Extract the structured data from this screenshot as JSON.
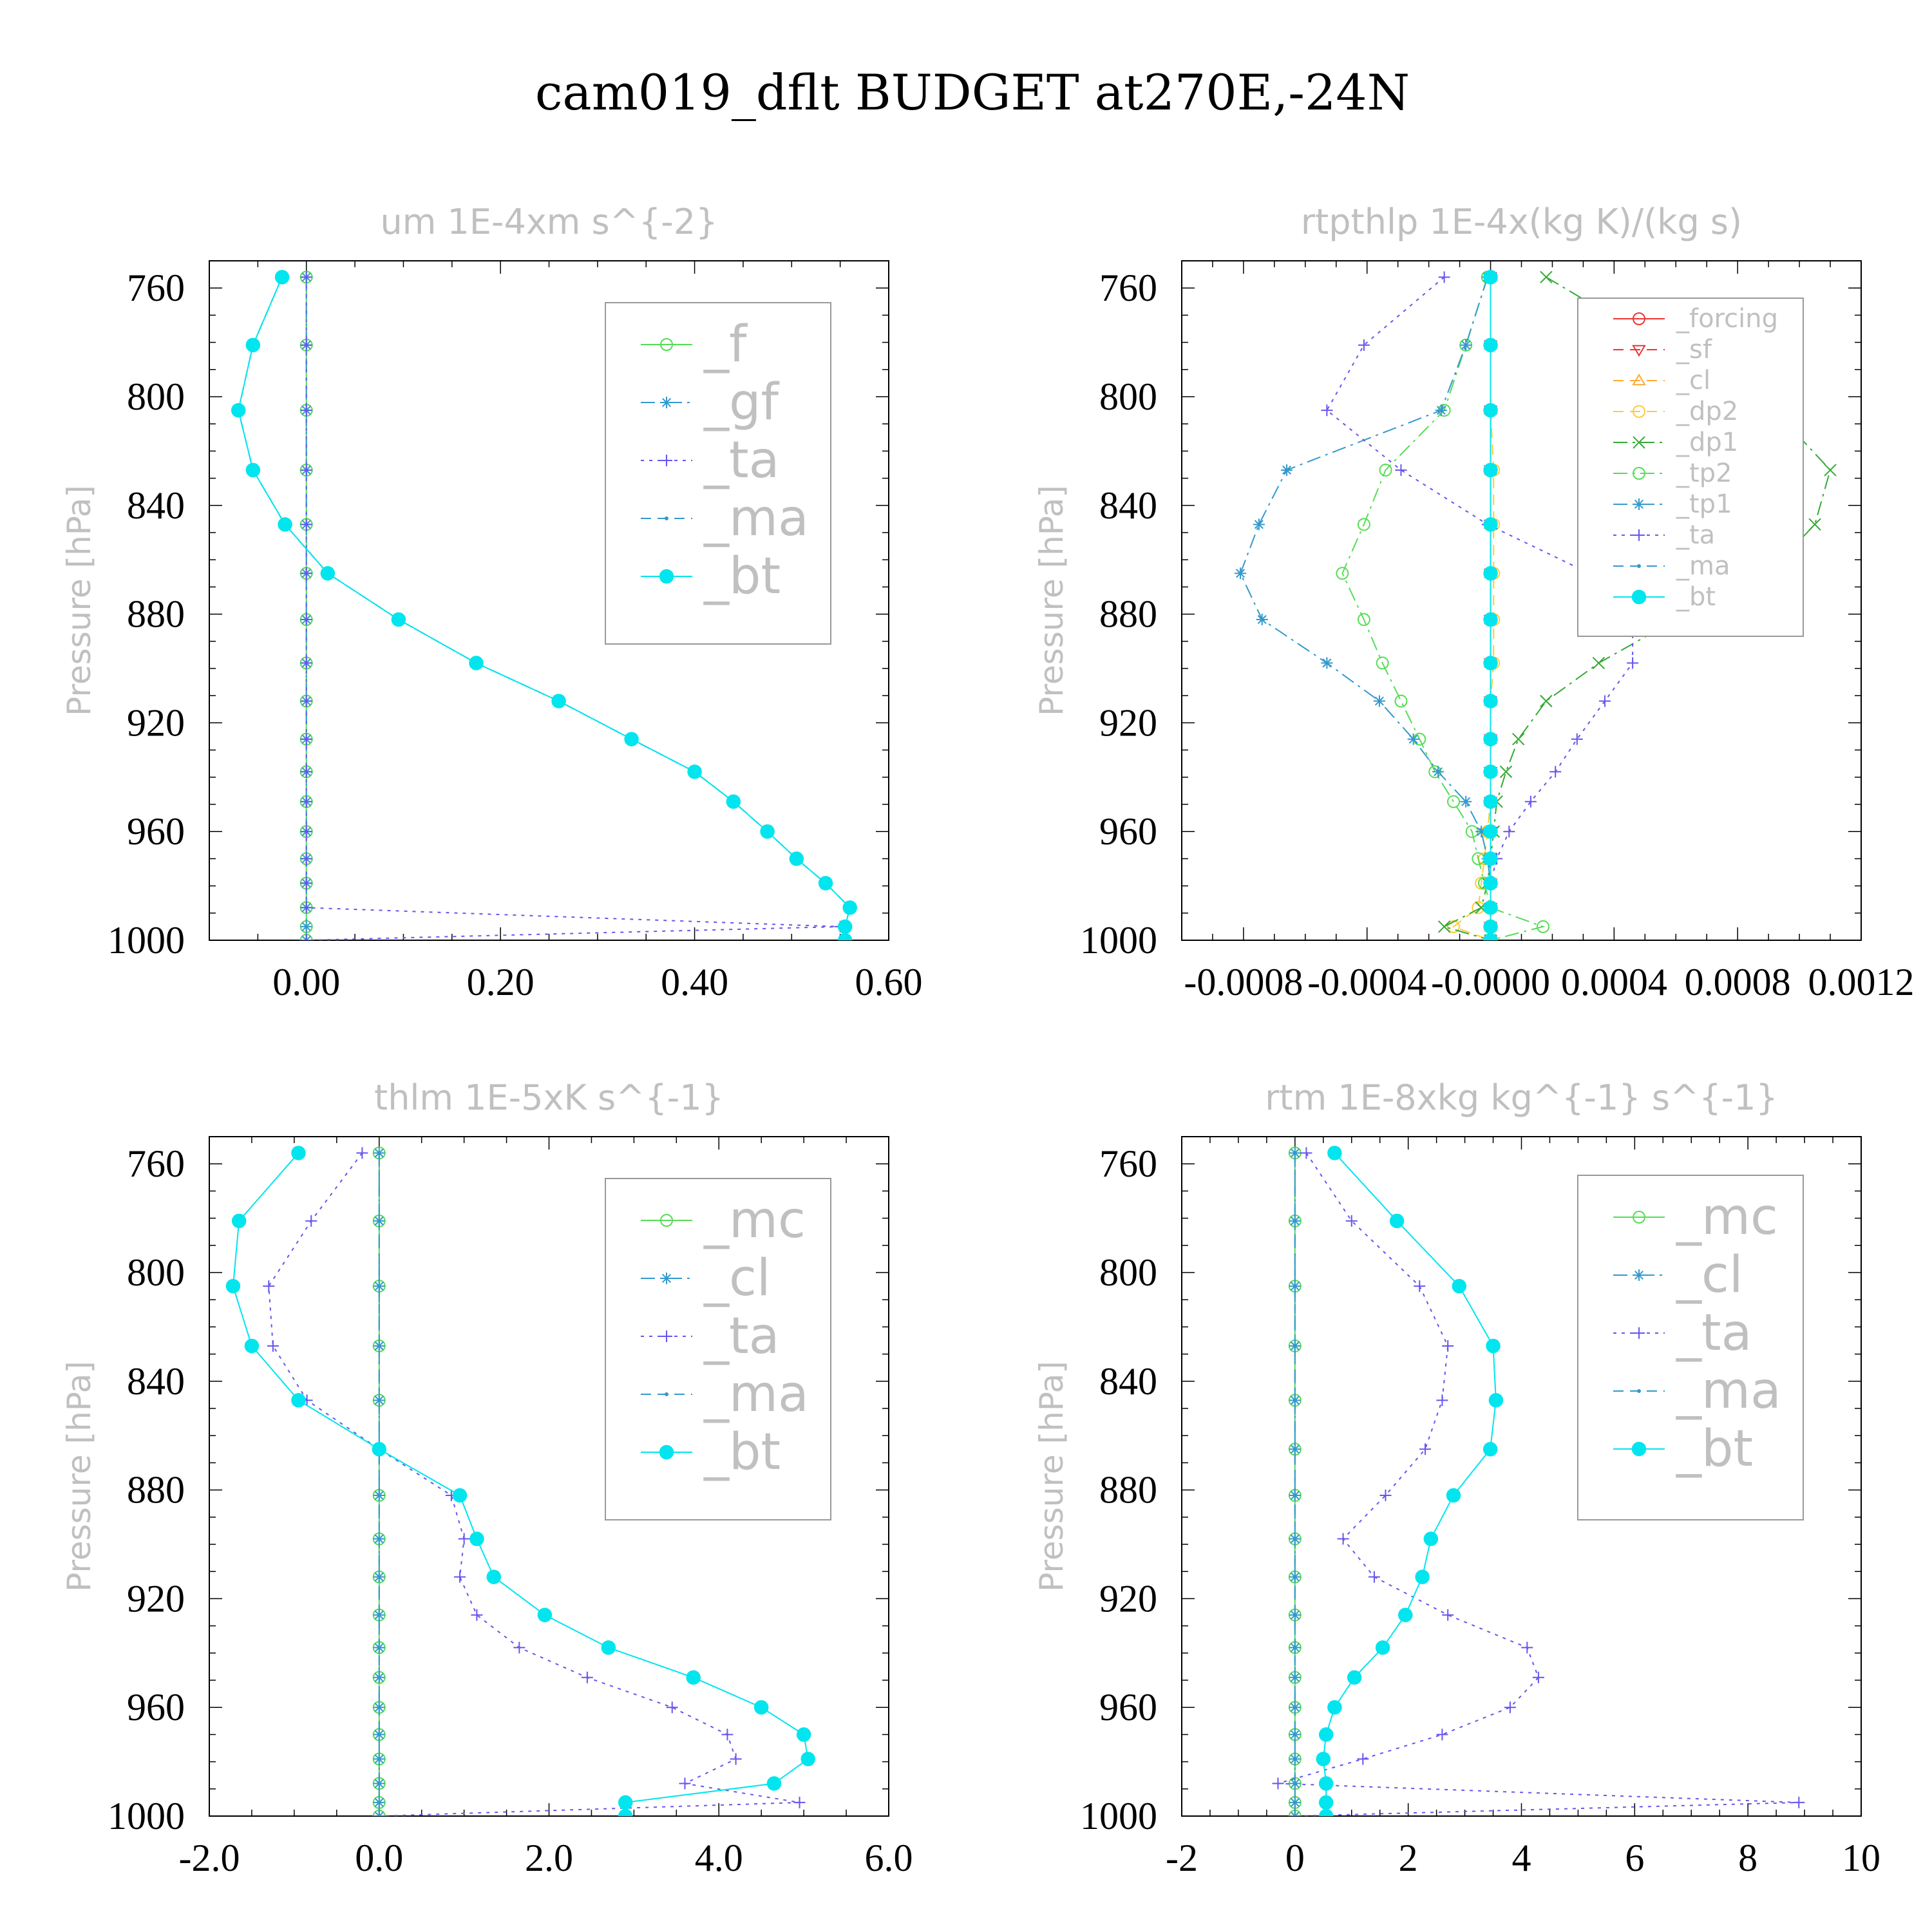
{
  "title": "cam019_dflt  BUDGET at270E,-24N",
  "colors": {
    "green": "#55dd55",
    "blue": "#3399cc",
    "purple": "#6655ee",
    "cyan": "#00e5ee",
    "red": "#ee3333",
    "orange": "#ffaa33",
    "yellow": "#ffcc33",
    "dkgreen": "#33aa33"
  },
  "chart_data": [
    {
      "type": "line",
      "title": "um   1E-4xm s^{-2}",
      "ylabel": "Pressure [hPa]",
      "xlim": [
        -0.1,
        0.6
      ],
      "ylim": [
        1000,
        750
      ],
      "xticks": [
        "0.00",
        "0.20",
        "0.40",
        "0.60"
      ],
      "xtick_values": [
        0,
        0.2,
        0.4,
        0.6
      ],
      "yticks": [
        "760",
        "800",
        "840",
        "880",
        "920",
        "960",
        "1000"
      ],
      "ytick_values": [
        760,
        800,
        840,
        880,
        920,
        960,
        1000
      ],
      "legend_position": "top-right",
      "levels": [
        756,
        781,
        805,
        827,
        847,
        865,
        882,
        898,
        912,
        926,
        938,
        949,
        960,
        970,
        979,
        988,
        995,
        1000
      ],
      "series": [
        {
          "name": "_f",
          "color": "green",
          "marker": "circle-open",
          "dash": "solid",
          "values": [
            0,
            0,
            0,
            0,
            0,
            0,
            0,
            0,
            0,
            0,
            0,
            0,
            0,
            0,
            0,
            0,
            0,
            0
          ]
        },
        {
          "name": "_gf",
          "color": "blue",
          "marker": "star",
          "dash": "dashdot",
          "values": [
            0,
            0,
            0,
            0,
            0,
            0,
            0,
            0,
            0,
            0,
            0,
            0,
            0,
            0,
            0,
            0,
            0,
            0
          ]
        },
        {
          "name": "_ta",
          "color": "purple",
          "marker": "plus",
          "dash": "dotted",
          "values": [
            0,
            0,
            0,
            0,
            0,
            0,
            0,
            0,
            0,
            0,
            0,
            0,
            0,
            0,
            0,
            0,
            0.55,
            0
          ]
        },
        {
          "name": "_ma",
          "color": "blue",
          "marker": "dot",
          "dash": "dashed",
          "values": [
            -0.025,
            -0.055,
            -0.07,
            -0.055,
            -0.022,
            0.022,
            0.095,
            0.175,
            0.26,
            0.335,
            0.4,
            0.44,
            0.475,
            0.505,
            0.535,
            0.56,
            0.555,
            0.555
          ]
        },
        {
          "name": "_bt",
          "color": "cyan",
          "marker": "filled",
          "dash": "solid",
          "values": [
            -0.025,
            -0.055,
            -0.07,
            -0.055,
            -0.022,
            0.022,
            0.095,
            0.175,
            0.26,
            0.335,
            0.4,
            0.44,
            0.475,
            0.505,
            0.535,
            0.56,
            0.555,
            0.555
          ]
        }
      ]
    },
    {
      "type": "line",
      "title": "rtpthlp   1E-4x(kg K)/(kg s)",
      "ylabel": "Pressure [hPa]",
      "xlim": [
        -0.001,
        0.0012
      ],
      "ylim": [
        1000,
        750
      ],
      "xticks": [
        "-0.0008",
        "-0.0004",
        "-0.0000",
        "0.0004",
        "0.0008",
        "0.0012"
      ],
      "xtick_values": [
        -0.0008,
        -0.0004,
        0,
        0.0004,
        0.0008,
        0.0012
      ],
      "yticks": [
        "760",
        "800",
        "840",
        "880",
        "920",
        "960",
        "1000"
      ],
      "ytick_values": [
        760,
        800,
        840,
        880,
        920,
        960,
        1000
      ],
      "legend_position": "top-right",
      "levels": [
        756,
        781,
        805,
        827,
        847,
        865,
        882,
        898,
        912,
        926,
        938,
        949,
        960,
        970,
        979,
        988,
        995,
        1000
      ],
      "series": [
        {
          "name": "_forcing",
          "color": "red",
          "marker": "circle-open",
          "dash": "solid",
          "values": [
            0,
            0,
            0,
            0,
            0,
            0,
            0,
            0,
            0,
            0,
            0,
            0,
            0,
            0,
            0,
            0,
            0,
            0
          ]
        },
        {
          "name": "_sf",
          "color": "red",
          "marker": "tri-down",
          "dash": "dashed",
          "values": [
            0,
            0,
            0,
            0,
            0,
            0,
            0,
            0,
            0,
            0,
            0,
            0,
            0,
            0,
            0,
            0,
            0,
            0
          ]
        },
        {
          "name": "_cl",
          "color": "orange",
          "marker": "tri-up",
          "dash": "dashed",
          "values": [
            0,
            0,
            0,
            0,
            0,
            0,
            0,
            0,
            0,
            0,
            0,
            0,
            0,
            0,
            0,
            0,
            0,
            0
          ]
        },
        {
          "name": "_dp2",
          "color": "yellow",
          "marker": "circle-open",
          "dash": "dashed",
          "values": [
            0,
            0,
            0,
            1e-05,
            1e-05,
            1e-05,
            1e-05,
            1e-05,
            0,
            0,
            0,
            0,
            -1e-05,
            -2e-05,
            -3e-05,
            -4e-05,
            -0.00012,
            0
          ]
        },
        {
          "name": "_dp1",
          "color": "dkgreen",
          "marker": "x",
          "dash": "dashdot",
          "values": [
            0.00018,
            0.00055,
            0.00092,
            0.0011,
            0.00105,
            0.0009,
            0.0006,
            0.00035,
            0.00018,
            9e-05,
            5e-05,
            2e-05,
            1e-05,
            0,
            -1e-05,
            -3e-05,
            -0.00015,
            0
          ]
        },
        {
          "name": "_tp2",
          "color": "green",
          "marker": "circle-open",
          "dash": "dashdot",
          "values": [
            -1e-05,
            -8e-05,
            -0.00015,
            -0.00034,
            -0.00041,
            -0.00048,
            -0.00041,
            -0.00035,
            -0.00029,
            -0.00023,
            -0.00018,
            -0.00012,
            -6e-05,
            -4e-05,
            -2e-05,
            0,
            0.00017,
            0
          ]
        },
        {
          "name": "_tp1",
          "color": "blue",
          "marker": "star",
          "dash": "dashdot",
          "values": [
            -1e-05,
            -8e-05,
            -0.00016,
            -0.00066,
            -0.00075,
            -0.00081,
            -0.00074,
            -0.00053,
            -0.00036,
            -0.00025,
            -0.00017,
            -8e-05,
            -3e-05,
            -1e-05,
            0,
            0,
            0,
            0
          ]
        },
        {
          "name": "_ta",
          "color": "purple",
          "marker": "plus",
          "dash": "dotted",
          "values": [
            -0.00015,
            -0.00041,
            -0.00053,
            -0.00029,
            -1e-05,
            0.00032,
            0.00046,
            0.00046,
            0.00037,
            0.00028,
            0.00021,
            0.00013,
            6e-05,
            2e-05,
            0,
            0,
            0,
            0
          ]
        },
        {
          "name": "_ma",
          "color": "blue",
          "marker": "dot",
          "dash": "dashed",
          "values": [
            0,
            0,
            0,
            0,
            0,
            0,
            0,
            0,
            0,
            0,
            0,
            0,
            0,
            0,
            0,
            0,
            0,
            0
          ]
        },
        {
          "name": "_bt",
          "color": "cyan",
          "marker": "filled",
          "dash": "solid",
          "values": [
            0,
            0,
            0,
            0,
            0,
            0,
            0,
            0,
            0,
            0,
            0,
            0,
            0,
            0,
            0,
            0,
            0,
            0
          ]
        }
      ]
    },
    {
      "type": "line",
      "title": "thlm   1E-5xK s^{-1}",
      "ylabel": "Pressure [hPa]",
      "xlim": [
        -2,
        6
      ],
      "ylim": [
        1000,
        750
      ],
      "xticks": [
        "-2.0",
        "0.0",
        "2.0",
        "4.0",
        "6.0"
      ],
      "xtick_values": [
        -2,
        0,
        2,
        4,
        6
      ],
      "yticks": [
        "760",
        "800",
        "840",
        "880",
        "920",
        "960",
        "1000"
      ],
      "ytick_values": [
        760,
        800,
        840,
        880,
        920,
        960,
        1000
      ],
      "legend_position": "top-right",
      "levels": [
        756,
        781,
        805,
        827,
        847,
        865,
        882,
        898,
        912,
        926,
        938,
        949,
        960,
        970,
        979,
        988,
        995,
        1000
      ],
      "series": [
        {
          "name": "_mc",
          "color": "green",
          "marker": "circle-open",
          "dash": "solid",
          "values": [
            0,
            0,
            0,
            0,
            0,
            0,
            0,
            0,
            0,
            0,
            0,
            0,
            0,
            0,
            0,
            0,
            0,
            0
          ]
        },
        {
          "name": "_cl",
          "color": "blue",
          "marker": "star",
          "dash": "dashdot",
          "values": [
            0,
            0,
            0,
            0,
            0,
            0,
            0,
            0,
            0,
            0,
            0,
            0,
            0,
            0,
            0,
            0,
            0,
            0
          ]
        },
        {
          "name": "_ta",
          "color": "purple",
          "marker": "plus",
          "dash": "dotted",
          "values": [
            -0.2,
            -0.8,
            -1.3,
            -1.25,
            -0.85,
            0,
            0.85,
            1.0,
            0.95,
            1.15,
            1.65,
            2.45,
            3.45,
            4.1,
            4.2,
            3.6,
            4.95,
            0
          ]
        },
        {
          "name": "_ma",
          "color": "blue",
          "marker": "dot",
          "dash": "dashed",
          "values": [
            0,
            0,
            0,
            0,
            0,
            0,
            0,
            0,
            0,
            0,
            0,
            0,
            0,
            0,
            0,
            0,
            0,
            0
          ]
        },
        {
          "name": "_bt",
          "color": "cyan",
          "marker": "filled",
          "dash": "solid",
          "values": [
            -0.95,
            -1.65,
            -1.72,
            -1.5,
            -0.95,
            0,
            0.95,
            1.15,
            1.35,
            1.95,
            2.7,
            3.7,
            4.5,
            5.0,
            5.05,
            4.65,
            2.9,
            2.9
          ]
        }
      ]
    },
    {
      "type": "line",
      "title": "rtm   1E-8xkg kg^{-1} s^{-1}",
      "ylabel": "Pressure [hPa]",
      "xlim": [
        -2,
        10
      ],
      "ylim": [
        1000,
        750
      ],
      "xticks": [
        "-2",
        "0",
        "2",
        "4",
        "6",
        "8",
        "10"
      ],
      "xtick_values": [
        -2,
        0,
        2,
        4,
        6,
        8,
        10
      ],
      "yticks": [
        "760",
        "800",
        "840",
        "880",
        "920",
        "960",
        "1000"
      ],
      "ytick_values": [
        760,
        800,
        840,
        880,
        920,
        960,
        1000
      ],
      "legend_position": "top-right",
      "levels": [
        756,
        781,
        805,
        827,
        847,
        865,
        882,
        898,
        912,
        926,
        938,
        949,
        960,
        970,
        979,
        988,
        995,
        1000
      ],
      "series": [
        {
          "name": "_mc",
          "color": "green",
          "marker": "circle-open",
          "dash": "solid",
          "values": [
            0,
            0,
            0,
            0,
            0,
            0,
            0,
            0,
            0,
            0,
            0,
            0,
            0,
            0,
            0,
            0,
            0,
            0
          ]
        },
        {
          "name": "_cl",
          "color": "blue",
          "marker": "star",
          "dash": "dashdot",
          "values": [
            0,
            0,
            0,
            0,
            0,
            0,
            0,
            0,
            0,
            0,
            0,
            0,
            0,
            0,
            0,
            0,
            0,
            0
          ]
        },
        {
          "name": "_ta",
          "color": "purple",
          "marker": "plus",
          "dash": "dotted",
          "values": [
            0.2,
            1.0,
            2.2,
            2.7,
            2.6,
            2.3,
            1.6,
            0.85,
            1.4,
            2.7,
            4.1,
            4.3,
            3.8,
            2.6,
            1.2,
            -0.3,
            8.9,
            0
          ]
        },
        {
          "name": "_ma",
          "color": "blue",
          "marker": "dot",
          "dash": "dashed",
          "values": [
            0,
            0,
            0,
            0,
            0,
            0,
            0,
            0,
            0,
            0,
            0,
            0,
            0,
            0,
            0,
            0,
            0,
            0
          ]
        },
        {
          "name": "_bt",
          "color": "cyan",
          "marker": "filled",
          "dash": "solid",
          "values": [
            0.7,
            1.8,
            2.9,
            3.5,
            3.55,
            3.45,
            2.8,
            2.4,
            2.25,
            1.95,
            1.55,
            1.05,
            0.7,
            0.55,
            0.5,
            0.55,
            0.55,
            0.55
          ]
        }
      ]
    }
  ]
}
